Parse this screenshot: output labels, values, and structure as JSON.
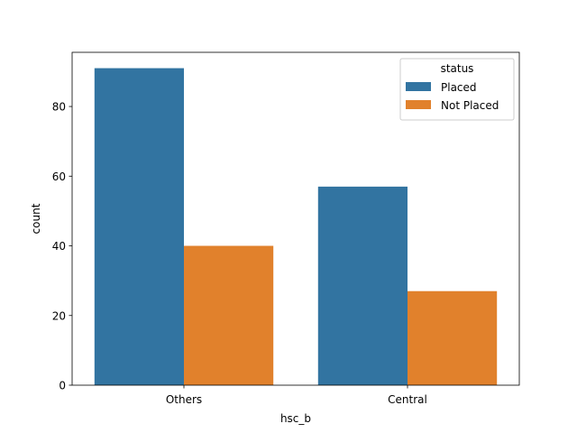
{
  "chart_data": {
    "type": "bar",
    "title": "",
    "xlabel": "hsc_b",
    "ylabel": "count",
    "categories": [
      "Others",
      "Central"
    ],
    "series": [
      {
        "name": "Placed",
        "values": [
          91,
          57
        ],
        "color": "#3274a1"
      },
      {
        "name": "Not Placed",
        "values": [
          40,
          27
        ],
        "color": "#e1812c"
      }
    ],
    "ylim": [
      0,
      95.55
    ],
    "yticks": [
      0,
      20,
      40,
      60,
      80
    ],
    "legend": {
      "title": "status",
      "placement": "top-right"
    },
    "grid": false
  }
}
